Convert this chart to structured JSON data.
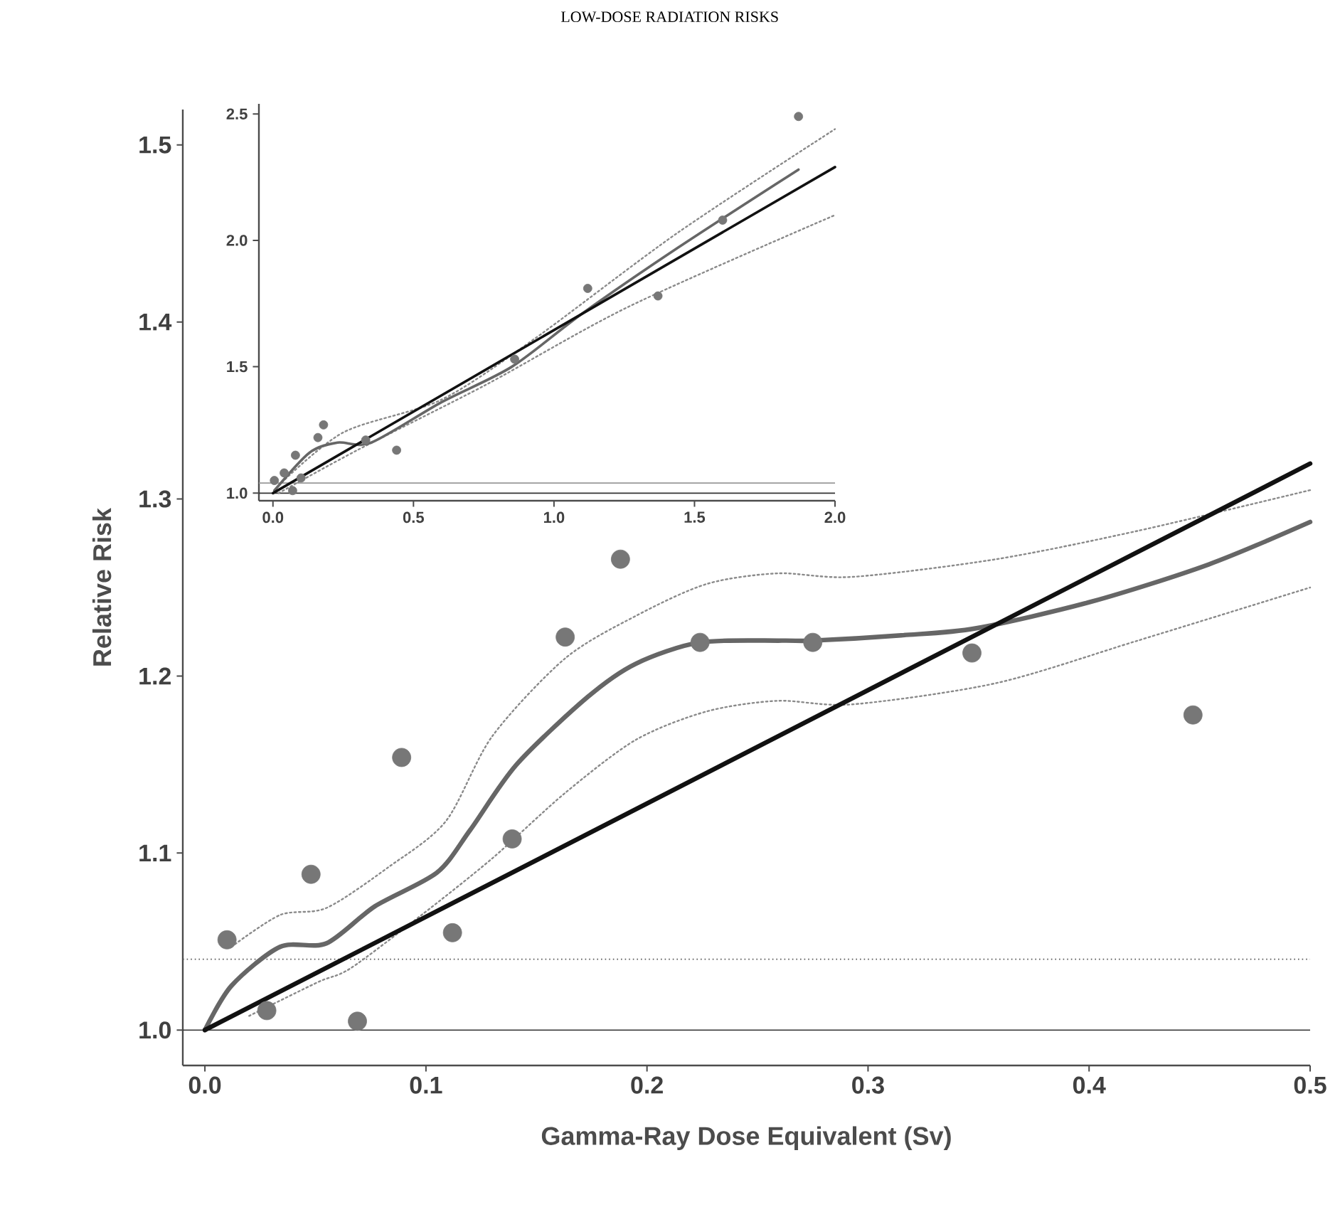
{
  "chart_data": [
    {
      "type": "line",
      "title": "LOW-DOSE RADIATION RISKS",
      "xlabel": "Gamma-Ray Dose Equivalent (Sv)",
      "ylabel": "Relative Risk",
      "xlim": [
        -0.01,
        0.5
      ],
      "ylim": [
        0.98,
        1.52
      ],
      "xticks": [
        {
          "value": 0,
          "label": "0.0"
        },
        {
          "value": 0.1,
          "label": "0.1"
        },
        {
          "value": 0.2,
          "label": "0.2"
        },
        {
          "value": 0.3,
          "label": "0.3"
        },
        {
          "value": 0.4,
          "label": "0.4"
        },
        {
          "value": 0.5,
          "label": "0.5"
        }
      ],
      "yticks": [
        {
          "value": 1.0,
          "label": "1.0"
        },
        {
          "value": 1.1,
          "label": "1.1"
        },
        {
          "value": 1.2,
          "label": "1.2"
        },
        {
          "value": 1.3,
          "label": "1.3"
        },
        {
          "value": 1.4,
          "label": "1.4"
        },
        {
          "value": 1.5,
          "label": "1.5"
        }
      ],
      "ref_lines": [
        {
          "axis": "y",
          "value": 1.0,
          "color": "#333333",
          "line_style": "solid"
        },
        {
          "axis": "y",
          "value": 1.04,
          "color": "#555555",
          "line_style": "dotted"
        }
      ],
      "series": [
        {
          "color": "#8a8a8a",
          "line_style": "dotted",
          "x": [
            0.012,
            0.034,
            0.055,
            0.083,
            0.109,
            0.13,
            0.163,
            0.195,
            0.227,
            0.259,
            0.293,
            0.358,
            0.422,
            0.5
          ],
          "values": [
            1.047,
            1.065,
            1.069,
            1.092,
            1.118,
            1.166,
            1.21,
            1.234,
            1.252,
            1.258,
            1.256,
            1.266,
            1.282,
            1.305
          ]
        },
        {
          "color": "#8a8a8a",
          "line_style": "dotted",
          "x": [
            0.02,
            0.051,
            0.066,
            0.098,
            0.13,
            0.163,
            0.195,
            0.227,
            0.259,
            0.293,
            0.358,
            0.422,
            0.5
          ],
          "values": [
            1.008,
            1.027,
            1.035,
            1.065,
            1.097,
            1.134,
            1.164,
            1.18,
            1.186,
            1.184,
            1.196,
            1.22,
            1.25
          ]
        },
        {
          "color": "#666666",
          "line_style": "solid",
          "x": [
            0,
            0.012,
            0.034,
            0.055,
            0.077,
            0.105,
            0.12,
            0.141,
            0.173,
            0.195,
            0.224,
            0.261,
            0.275,
            0.315,
            0.349,
            0.401,
            0.454,
            0.5
          ],
          "values": [
            1.0,
            1.025,
            1.047,
            1.049,
            1.07,
            1.089,
            1.113,
            1.15,
            1.188,
            1.207,
            1.219,
            1.22,
            1.22,
            1.223,
            1.227,
            1.242,
            1.263,
            1.287
          ]
        },
        {
          "color": "#111111",
          "line_style": "solid",
          "x": [
            0,
            0.5
          ],
          "values": [
            1.0,
            1.32
          ]
        },
        {
          "type": "scatter",
          "color": "#777777",
          "marker": "circle",
          "x": [
            0.01,
            0.028,
            0.048,
            0.069,
            0.089,
            0.112,
            0.139,
            0.163,
            0.188,
            0.224,
            0.275,
            0.347,
            0.447
          ],
          "values": [
            1.051,
            1.011,
            1.088,
            1.005,
            1.154,
            1.055,
            1.108,
            1.222,
            1.266,
            1.219,
            1.219,
            1.213,
            1.178
          ]
        }
      ]
    },
    {
      "type": "line",
      "xlim": [
        -0.05,
        2.0
      ],
      "ylim": [
        0.97,
        2.54
      ],
      "xticks": [
        {
          "value": 0,
          "label": "0.0"
        },
        {
          "value": 0.5,
          "label": "0.5"
        },
        {
          "value": 1.0,
          "label": "1.0"
        },
        {
          "value": 1.5,
          "label": "1.5"
        },
        {
          "value": 2.0,
          "label": "2.0"
        }
      ],
      "yticks": [
        {
          "value": 1.0,
          "label": "1.0"
        },
        {
          "value": 1.5,
          "label": "1.5"
        },
        {
          "value": 2.0,
          "label": "2.0"
        },
        {
          "value": 2.5,
          "label": "2.5"
        }
      ],
      "ref_lines": [
        {
          "axis": "y",
          "value": 1.0,
          "color": "#333333",
          "line_style": "solid"
        },
        {
          "axis": "y",
          "value": 1.04,
          "color": "#999999",
          "line_style": "solid"
        }
      ],
      "series": [
        {
          "color": "#8a8a8a",
          "line_style": "dotted",
          "x": [
            0.02,
            0.25,
            0.6,
            0.93,
            1.44,
            2.0
          ],
          "values": [
            1.03,
            1.24,
            1.37,
            1.61,
            2.03,
            2.44
          ]
        },
        {
          "color": "#8a8a8a",
          "line_style": "dotted",
          "x": [
            0.02,
            0.3,
            0.76,
            1.27,
            2.0
          ],
          "values": [
            1.0,
            1.17,
            1.43,
            1.74,
            2.1
          ]
        },
        {
          "color": "#666666",
          "line_style": "solid",
          "x": [
            0.005,
            0.13,
            0.23,
            0.35,
            0.6,
            0.85,
            1.1,
            1.44,
            1.87
          ],
          "values": [
            1.01,
            1.16,
            1.2,
            1.2,
            1.36,
            1.5,
            1.71,
            1.97,
            2.28
          ]
        },
        {
          "color": "#111111",
          "line_style": "solid",
          "x": [
            0,
            2.0
          ],
          "values": [
            1.0,
            2.29
          ]
        },
        {
          "type": "scatter",
          "color": "#777777",
          "marker": "circle",
          "x": [
            0.005,
            0.04,
            0.07,
            0.08,
            0.1,
            0.16,
            0.18,
            0.33,
            0.44,
            0.86,
            1.12,
            1.37,
            1.6,
            1.87
          ],
          "values": [
            1.05,
            1.08,
            1.01,
            1.15,
            1.06,
            1.22,
            1.27,
            1.21,
            1.17,
            1.53,
            1.81,
            1.78,
            2.08,
            2.49
          ]
        }
      ]
    }
  ]
}
